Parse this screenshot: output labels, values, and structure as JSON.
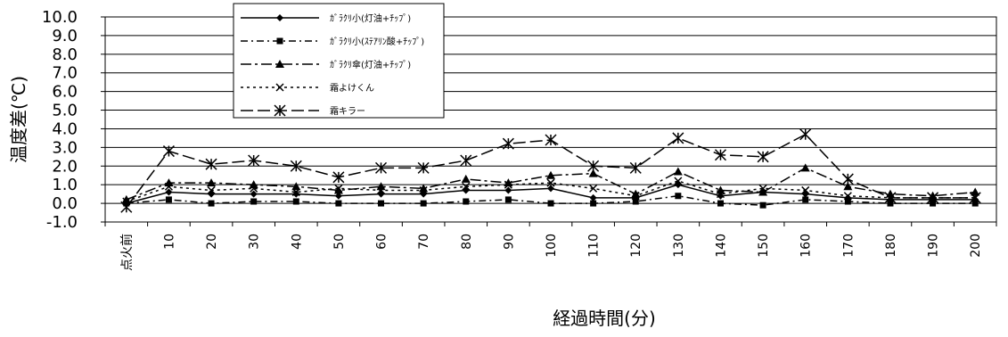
{
  "chart_data": {
    "type": "line",
    "xlabel": "経過時間(分)",
    "ylabel": "温度差(℃)",
    "categories": [
      "点火前",
      "10",
      "20",
      "30",
      "40",
      "50",
      "60",
      "70",
      "80",
      "90",
      "100",
      "110",
      "120",
      "130",
      "140",
      "150",
      "160",
      "170",
      "180",
      "190",
      "200"
    ],
    "ylim": [
      -1.0,
      10.0
    ],
    "yticks": [
      "10.0",
      "9.0",
      "8.0",
      "7.0",
      "6.0",
      "5.0",
      "4.0",
      "3.0",
      "2.0",
      "1.0",
      "0.0",
      "-1.0"
    ],
    "grid": true,
    "legend_position": "top-left",
    "series": [
      {
        "name": "ｶﾞﾗｸﾘ小(灯油+ﾁｯﾌﾟ)",
        "marker": "diamond",
        "dash": "",
        "values": [
          0.0,
          0.6,
          0.5,
          0.5,
          0.5,
          0.4,
          0.5,
          0.5,
          0.7,
          0.7,
          0.8,
          0.3,
          0.3,
          1.0,
          0.4,
          0.6,
          0.5,
          0.3,
          0.2,
          0.2,
          0.2
        ]
      },
      {
        "name": "ｶﾞﾗｸﾘ小(ｽﾃｱﾘﾝ酸+ﾁｯﾌﾟ)",
        "marker": "square",
        "dash": "8,4,2,4",
        "values": [
          0.0,
          0.2,
          0.0,
          0.1,
          0.1,
          0.0,
          0.0,
          0.0,
          0.1,
          0.2,
          0.0,
          0.0,
          0.1,
          0.4,
          0.0,
          -0.1,
          0.2,
          0.1,
          0.0,
          0.0,
          0.0
        ]
      },
      {
        "name": "ｶﾞﾗｸﾘ傘(灯油+ﾁｯﾌﾟ)",
        "marker": "triangle",
        "dash": "12,4,3,4",
        "values": [
          0.2,
          1.1,
          1.1,
          1.0,
          0.9,
          0.7,
          0.9,
          0.8,
          1.3,
          1.1,
          1.5,
          1.6,
          0.5,
          1.7,
          0.7,
          0.6,
          1.9,
          0.9,
          0.5,
          0.4,
          0.6
        ]
      },
      {
        "name": "霜よけくん",
        "marker": "x",
        "dash": "3,4",
        "values": [
          0.1,
          0.9,
          0.7,
          0.8,
          0.6,
          0.8,
          0.7,
          0.7,
          0.9,
          1.0,
          1.1,
          0.8,
          0.4,
          1.2,
          0.5,
          0.8,
          0.7,
          0.4,
          0.3,
          0.3,
          0.3
        ]
      },
      {
        "name": "霜キラー",
        "marker": "star",
        "dash": "14,5",
        "values": [
          -0.2,
          2.8,
          2.1,
          2.3,
          2.0,
          1.4,
          1.9,
          1.9,
          2.3,
          3.2,
          3.4,
          2.0,
          1.9,
          3.5,
          2.6,
          2.5,
          3.7,
          1.3,
          0.3,
          0.3,
          0.3
        ]
      }
    ]
  }
}
